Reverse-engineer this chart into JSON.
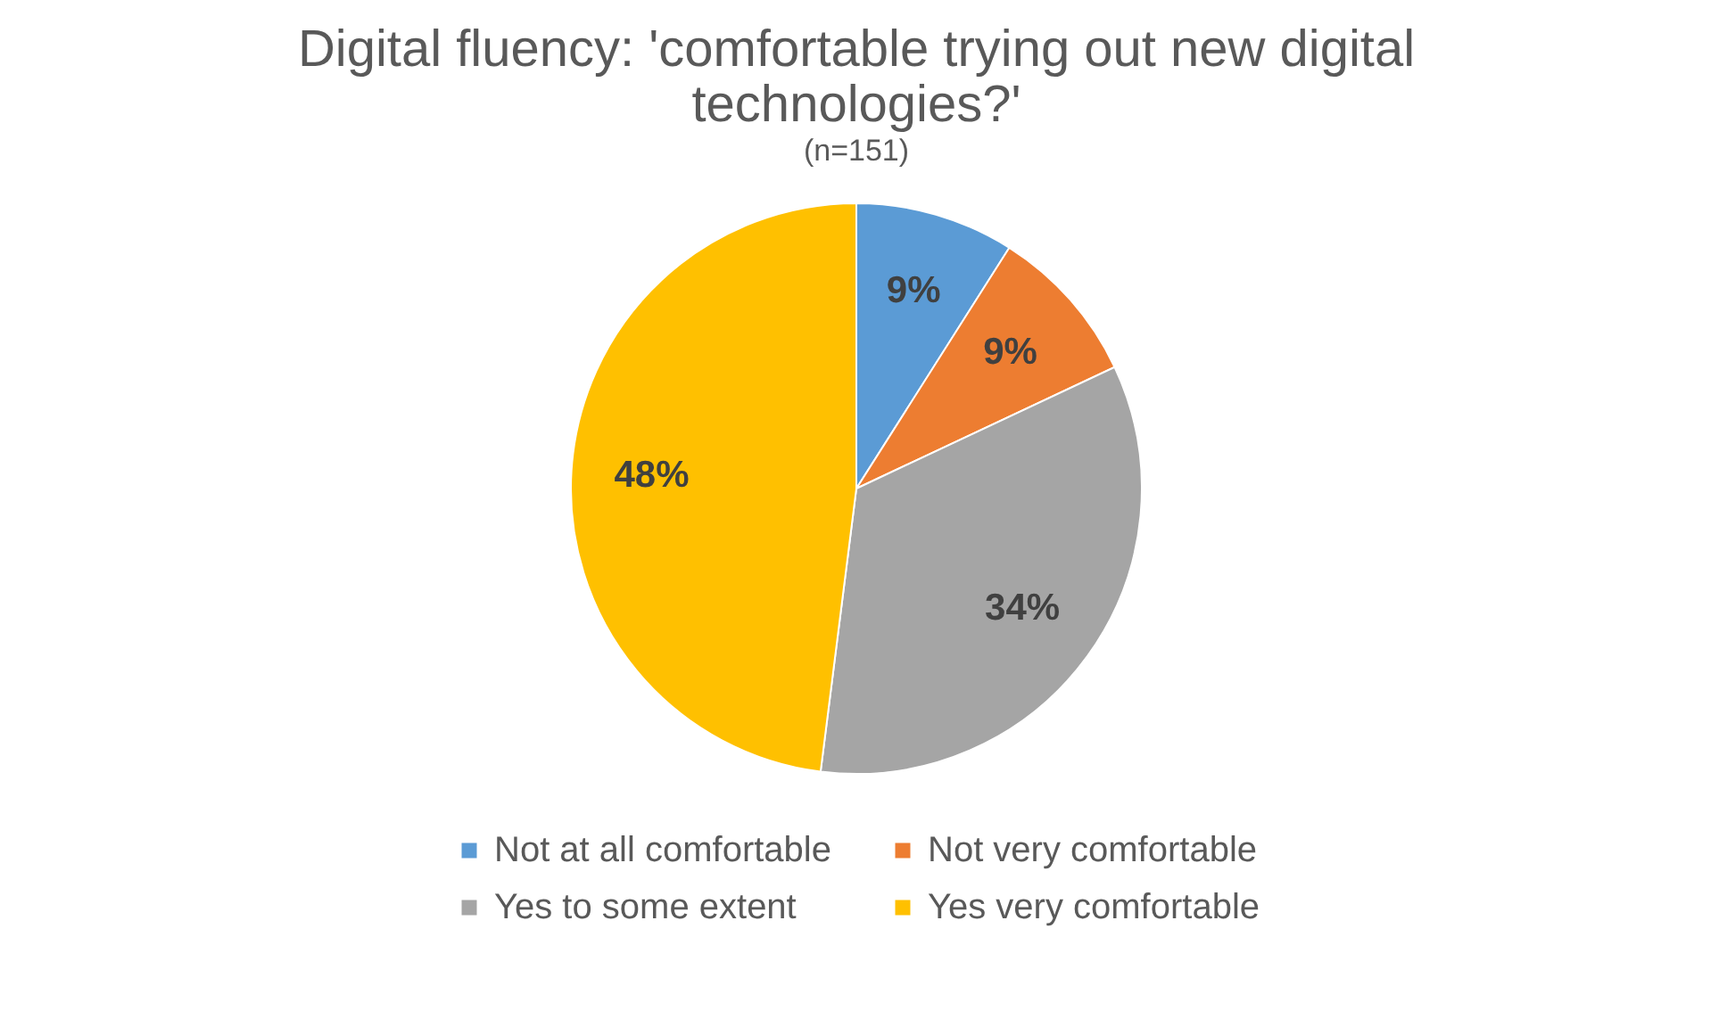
{
  "chart_data": {
    "type": "pie",
    "title": "Digital fluency: 'comfortable trying out new digital technologies?'",
    "subtitle": "(n=151)",
    "categories": [
      "Not at all comfortable",
      "Not very comfortable",
      "Yes to some extent",
      "Yes very comfortable"
    ],
    "values": [
      9,
      9,
      34,
      48
    ],
    "value_labels": [
      "9%",
      "9%",
      "34%",
      "48%"
    ],
    "colors": [
      "#5b9bd5",
      "#ed7d31",
      "#a5a5a5",
      "#ffc000"
    ],
    "legend": "bottom"
  }
}
